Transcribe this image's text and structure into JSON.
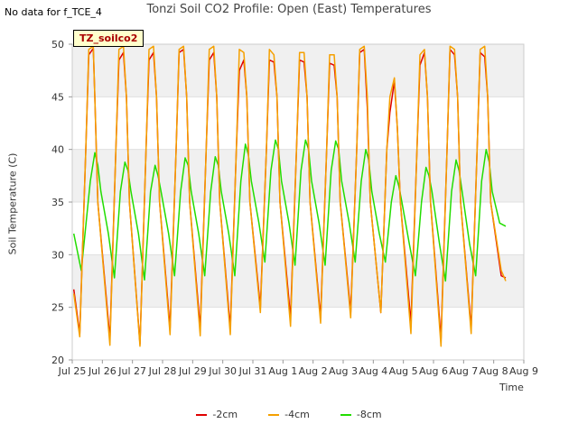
{
  "no_data_text": "No data for f_TCE_4",
  "site_label": "TZ_soilco2",
  "colors": {
    "-2cm": "#e00000",
    "-4cm": "#f5a000",
    "-8cm": "#22dd00"
  },
  "chart_data": {
    "type": "line",
    "title": "Tonzi Soil CO2 Profile: Open (East) Temperatures",
    "xlabel": "Time",
    "ylabel": "Soil Temperature (C)",
    "ylim": [
      20,
      50
    ],
    "xlim": [
      0,
      15
    ],
    "yticks": [
      "20",
      "25",
      "30",
      "35",
      "40",
      "45",
      "50"
    ],
    "xticks": [
      "Jul 25",
      "Jul 26",
      "Jul 27",
      "Jul 28",
      "Jul 29",
      "Jul 30",
      "Jul 31",
      "Aug 1",
      "Aug 2",
      "Aug 3",
      "Aug 4",
      "Aug 5",
      "Aug 6",
      "Aug 7",
      "Aug 8",
      "Aug 9"
    ],
    "grid": true,
    "legend_position": "bottom",
    "series": [
      {
        "name": "-2cm",
        "x": [
          0.05,
          0.25,
          0.45,
          0.55,
          0.7,
          0.75,
          0.85,
          1.25,
          1.45,
          1.55,
          1.7,
          1.8,
          1.9,
          2.25,
          2.45,
          2.55,
          2.7,
          2.8,
          2.9,
          3.25,
          3.45,
          3.55,
          3.7,
          3.8,
          3.9,
          4.25,
          4.45,
          4.55,
          4.7,
          4.8,
          4.9,
          5.25,
          5.45,
          5.55,
          5.7,
          5.8,
          5.9,
          6.25,
          6.45,
          6.55,
          6.7,
          6.8,
          6.9,
          7.25,
          7.45,
          7.55,
          7.7,
          7.8,
          7.9,
          8.25,
          8.45,
          8.55,
          8.7,
          8.8,
          8.9,
          9.25,
          9.45,
          9.55,
          9.7,
          9.8,
          9.9,
          10.25,
          10.45,
          10.55,
          10.7,
          10.8,
          10.9,
          11.25,
          11.45,
          11.55,
          11.7,
          11.8,
          11.9,
          12.25,
          12.45,
          12.55,
          12.7,
          12.8,
          12.9,
          13.25,
          13.45,
          13.55,
          13.7,
          13.8,
          13.9,
          14.25,
          14.4
        ],
        "values": [
          26.7,
          22.5,
          40,
          49,
          49.6,
          45,
          35,
          22,
          40,
          48.5,
          49.2,
          45,
          35,
          21.5,
          40,
          48.5,
          49.2,
          45,
          35,
          23,
          40,
          49.2,
          49.5,
          45,
          35,
          23,
          40,
          48.5,
          49.2,
          45,
          35,
          23,
          40,
          47.5,
          48.5,
          45,
          35,
          25,
          40,
          48.5,
          48.3,
          45,
          35,
          24,
          40,
          48.5,
          48.3,
          45,
          35,
          24,
          40,
          48.2,
          48,
          45,
          35,
          24.5,
          40,
          49.2,
          49.5,
          44,
          35,
          24.5,
          40,
          43.5,
          46.5,
          42,
          35,
          23.5,
          40,
          48,
          49.2,
          45,
          35,
          22,
          40,
          49.5,
          49,
          45,
          35,
          23,
          40,
          49.2,
          48.8,
          45,
          35,
          28,
          27.8
        ]
      },
      {
        "name": "-4cm",
        "x": [
          0.05,
          0.25,
          0.45,
          0.55,
          0.7,
          0.75,
          0.85,
          1.25,
          1.45,
          1.55,
          1.7,
          1.8,
          1.9,
          2.25,
          2.45,
          2.55,
          2.7,
          2.8,
          2.9,
          3.25,
          3.45,
          3.55,
          3.7,
          3.8,
          3.9,
          4.25,
          4.45,
          4.55,
          4.7,
          4.8,
          4.9,
          5.25,
          5.45,
          5.55,
          5.7,
          5.8,
          5.9,
          6.25,
          6.45,
          6.55,
          6.7,
          6.8,
          6.9,
          7.25,
          7.45,
          7.55,
          7.7,
          7.8,
          7.9,
          8.25,
          8.45,
          8.55,
          8.7,
          8.8,
          8.9,
          9.25,
          9.45,
          9.55,
          9.7,
          9.8,
          9.9,
          10.25,
          10.45,
          10.55,
          10.7,
          10.8,
          10.9,
          11.25,
          11.45,
          11.55,
          11.7,
          11.8,
          11.9,
          12.25,
          12.45,
          12.55,
          12.7,
          12.8,
          12.9,
          13.25,
          13.45,
          13.55,
          13.7,
          13.8,
          13.9,
          14.25,
          14.4
        ],
        "values": [
          26.3,
          22.2,
          40,
          49.5,
          49.8,
          45,
          35,
          21.4,
          40,
          49.5,
          49.8,
          45,
          35,
          21.3,
          40,
          49.5,
          49.8,
          45,
          35,
          22.4,
          40,
          49.5,
          49.8,
          45,
          35,
          22.3,
          40,
          49.5,
          49.8,
          45,
          35,
          22.4,
          40,
          49.5,
          49.2,
          45,
          35,
          24.5,
          40,
          49.5,
          49,
          45,
          35,
          23.2,
          40,
          49.2,
          49.2,
          45,
          35,
          23.5,
          40,
          49,
          49,
          45,
          35,
          24,
          40,
          49.5,
          49.8,
          45,
          35,
          24.5,
          40,
          45,
          46.8,
          42,
          35,
          22.5,
          40,
          49,
          49.5,
          45,
          35,
          21.3,
          40,
          49.8,
          49.5,
          45,
          35,
          22.5,
          40,
          49.5,
          49.8,
          45,
          35,
          28.5,
          27.5
        ]
      },
      {
        "name": "-8cm",
        "x": [
          0.05,
          0.3,
          0.6,
          0.75,
          0.85,
          0.95,
          1.2,
          1.4,
          1.6,
          1.75,
          1.85,
          1.95,
          2.2,
          2.4,
          2.6,
          2.75,
          2.85,
          2.95,
          3.2,
          3.4,
          3.6,
          3.75,
          3.85,
          3.95,
          4.2,
          4.4,
          4.6,
          4.75,
          4.85,
          4.95,
          5.2,
          5.4,
          5.6,
          5.75,
          5.85,
          5.95,
          6.2,
          6.4,
          6.6,
          6.75,
          6.85,
          6.95,
          7.2,
          7.4,
          7.6,
          7.75,
          7.85,
          7.95,
          8.2,
          8.4,
          8.6,
          8.75,
          8.85,
          8.95,
          9.2,
          9.4,
          9.6,
          9.75,
          9.85,
          9.95,
          10.2,
          10.4,
          10.6,
          10.75,
          10.85,
          10.95,
          11.2,
          11.4,
          11.6,
          11.75,
          11.85,
          11.95,
          12.2,
          12.4,
          12.6,
          12.75,
          12.85,
          12.95,
          13.2,
          13.4,
          13.6,
          13.75,
          13.85,
          13.95,
          14.2,
          14.4
        ],
        "values": [
          32,
          28.5,
          37,
          39.7,
          38.5,
          36,
          32,
          27.8,
          36,
          38.8,
          38,
          36,
          32,
          27.6,
          36,
          38.5,
          37.5,
          36,
          32,
          28,
          36,
          39.2,
          38.5,
          36,
          32,
          28,
          36,
          39.3,
          38.5,
          36,
          32,
          28,
          37,
          40.5,
          39.5,
          37,
          33,
          29.3,
          38,
          40.9,
          40,
          37,
          33,
          29,
          38,
          40.9,
          40,
          37,
          33,
          29,
          38,
          40.8,
          40,
          37,
          33,
          29.3,
          37,
          40,
          39,
          36,
          32,
          29.3,
          35,
          37.5,
          36.5,
          35,
          31,
          28,
          35,
          38.3,
          37.5,
          36,
          31,
          27.5,
          36,
          39,
          38,
          36,
          31,
          28,
          37,
          40,
          38.8,
          36,
          33,
          32.7
        ]
      }
    ]
  }
}
